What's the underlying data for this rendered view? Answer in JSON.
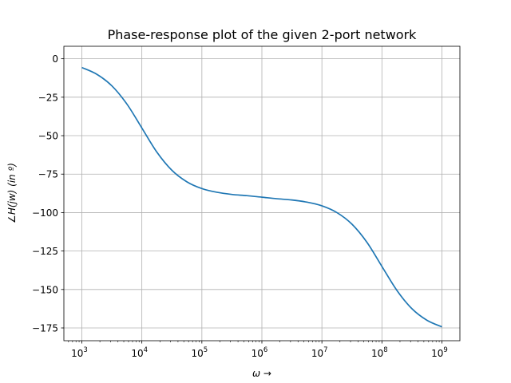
{
  "chart_data": {
    "type": "line",
    "title": "Phase-response plot of the given 2-port network",
    "xlabel": "ω →",
    "ylabel": "∠H(jw) (in º)",
    "x_scale": "log",
    "xlim": [
      1000,
      1000000000
    ],
    "ylim": [
      -180,
      0
    ],
    "grid": true,
    "x_ticks": [
      {
        "value": 1000,
        "base": "10",
        "exp": "3"
      },
      {
        "value": 10000,
        "base": "10",
        "exp": "4"
      },
      {
        "value": 100000,
        "base": "10",
        "exp": "5"
      },
      {
        "value": 1000000,
        "base": "10",
        "exp": "6"
      },
      {
        "value": 10000000,
        "base": "10",
        "exp": "7"
      },
      {
        "value": 100000000,
        "base": "10",
        "exp": "8"
      },
      {
        "value": 1000000000,
        "base": "10",
        "exp": "9"
      }
    ],
    "y_ticks": [
      {
        "value": 0,
        "label": "0"
      },
      {
        "value": -25,
        "label": "−25"
      },
      {
        "value": -50,
        "label": "−50"
      },
      {
        "value": -75,
        "label": "−75"
      },
      {
        "value": -100,
        "label": "−100"
      },
      {
        "value": -125,
        "label": "−125"
      },
      {
        "value": -150,
        "label": "−150"
      },
      {
        "value": -175,
        "label": "−175"
      }
    ],
    "series": [
      {
        "color": "#1f77b4",
        "x": [
          1000,
          1778,
          3162,
          5623,
          10000,
          17783,
          31623,
          56234,
          100000,
          177828,
          316228,
          562341,
          1000000,
          1778279,
          3162278,
          5623413,
          10000000,
          17782794,
          31622777,
          56234133,
          100000000,
          177827941,
          316227766,
          562341325,
          1000000000
        ],
        "y": [
          -5.7,
          -10.1,
          -17.6,
          -29.4,
          -45.0,
          -60.7,
          -72.5,
          -80.0,
          -84.4,
          -86.8,
          -88.2,
          -89.0,
          -90.0,
          -91.0,
          -91.8,
          -93.2,
          -95.6,
          -100.0,
          -107.5,
          -119.3,
          -135.0,
          -150.6,
          -162.5,
          -170.0,
          -174.3
        ]
      }
    ]
  }
}
